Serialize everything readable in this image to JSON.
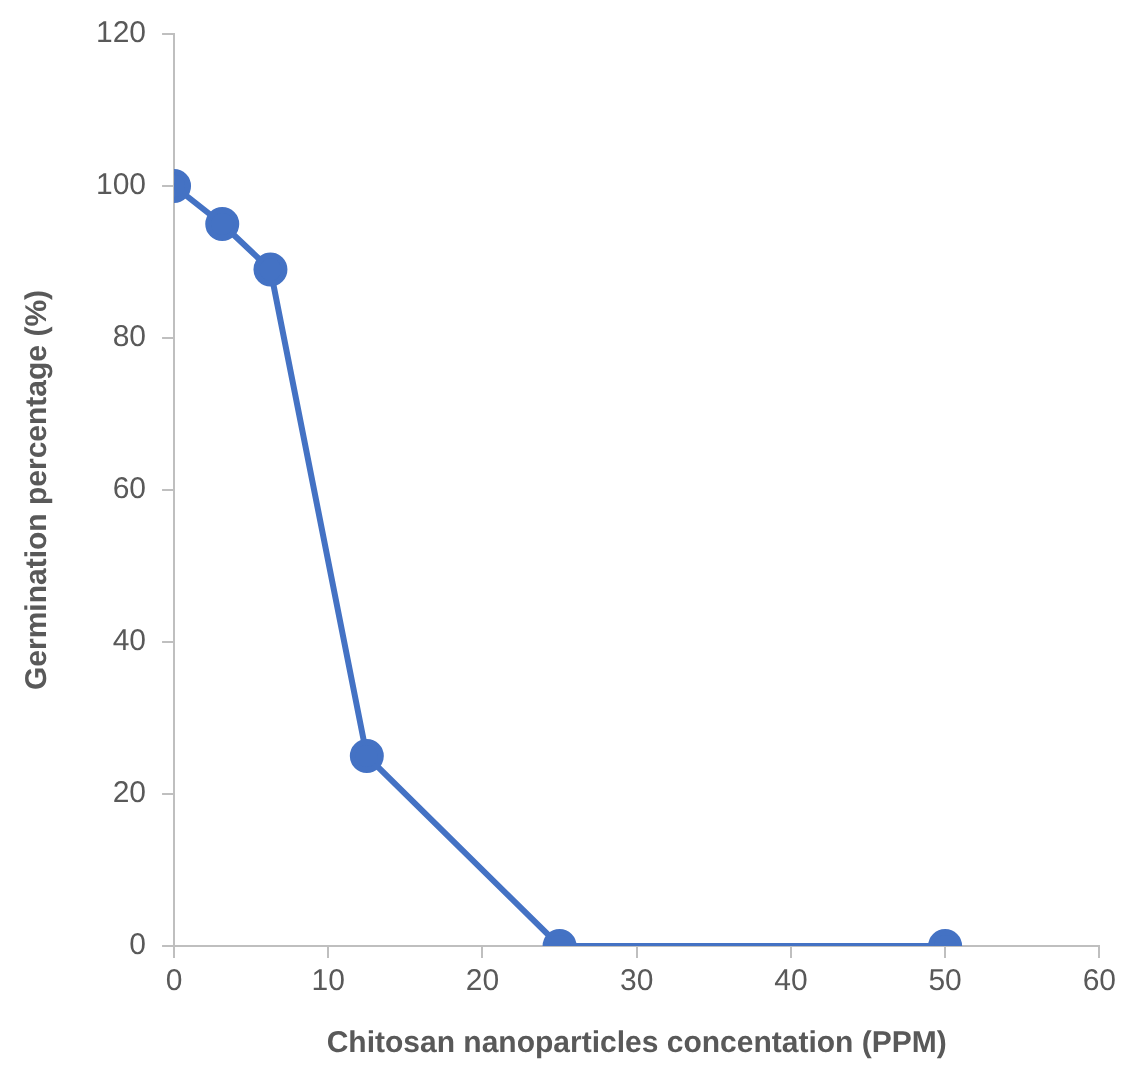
{
  "chart_data": {
    "type": "line",
    "xlabel": "Chitosan nanoparticles concentation (PPM)",
    "ylabel": "Germination percentage (%)",
    "x": [
      0,
      3.125,
      6.25,
      12.5,
      25,
      50
    ],
    "series": [
      {
        "color": "#4472c4",
        "values": [
          100,
          95,
          89,
          25,
          0,
          0
        ]
      }
    ],
    "xlim": [
      0,
      60
    ],
    "xticks": [
      0,
      10,
      20,
      30,
      40,
      50,
      60
    ],
    "ylim": [
      0,
      120
    ],
    "yticks": [
      0,
      20,
      40,
      60,
      80,
      100,
      120
    ],
    "grid": false,
    "legend": false,
    "marker": "circle",
    "line_style": "solid"
  }
}
